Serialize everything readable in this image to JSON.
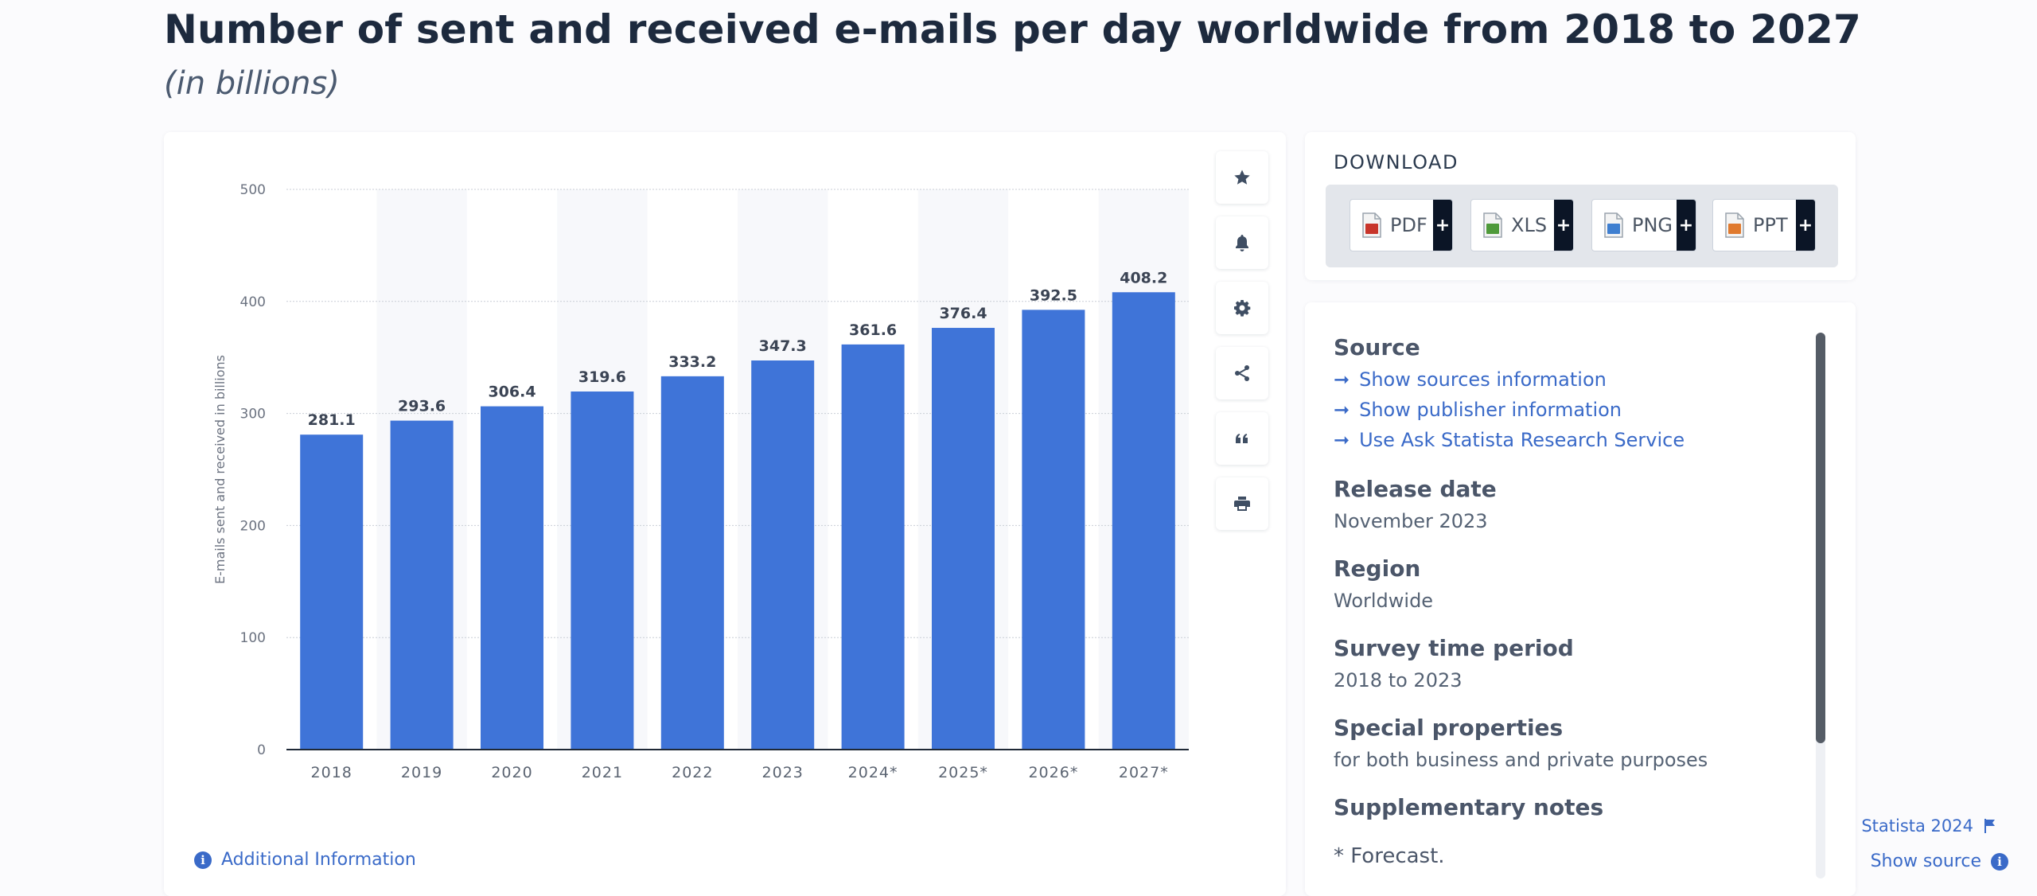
{
  "page": {
    "title": "Number of sent and received e-mails per day worldwide from 2018 to 2027",
    "subtitle": "(in billions)"
  },
  "chart_data": {
    "type": "bar",
    "categories": [
      "2018",
      "2019",
      "2020",
      "2021",
      "2022",
      "2023",
      "2024*",
      "2025*",
      "2026*",
      "2027*"
    ],
    "values": [
      281.1,
      293.6,
      306.4,
      319.6,
      333.2,
      347.3,
      361.6,
      376.4,
      392.5,
      408.2
    ],
    "value_labels": [
      "281.1",
      "293.6",
      "306.4",
      "319.6",
      "333.2",
      "347.3",
      "361.6",
      "376.4",
      "392.5",
      "408.2"
    ],
    "ylabel": "E-mails sent and received in billions",
    "xlabel": "",
    "ylim": [
      0,
      500
    ],
    "yticks": [
      "0",
      "100",
      "200",
      "300",
      "400",
      "500"
    ],
    "grid": true,
    "bar_color": "#3f74d8"
  },
  "chart_footer": {
    "copyright": "© Statista 2024",
    "show_source": "Show source",
    "additional_info": "Additional Information"
  },
  "tools": [
    "star-icon",
    "bell-icon",
    "gear-icon",
    "share-icon",
    "quote-icon",
    "print-icon"
  ],
  "download": {
    "title": "DOWNLOAD",
    "buttons": [
      {
        "label": "PDF",
        "color": "#c8352b"
      },
      {
        "label": "XLS",
        "color": "#4f9a3a"
      },
      {
        "label": "PNG",
        "color": "#3f7fd0"
      },
      {
        "label": "PPT",
        "color": "#e07a2e"
      }
    ],
    "plus": "+"
  },
  "info": {
    "source_heading": "Source",
    "links": [
      "Show sources information",
      "Show publisher information",
      "Use Ask Statista Research Service"
    ],
    "release_heading": "Release date",
    "release_value": "November 2023",
    "region_heading": "Region",
    "region_value": "Worldwide",
    "period_heading": "Survey time period",
    "period_value": "2018 to 2023",
    "special_heading": "Special properties",
    "special_value": "for both business and private purposes",
    "notes_heading": "Supplementary notes",
    "notes_value": "* Forecast."
  }
}
